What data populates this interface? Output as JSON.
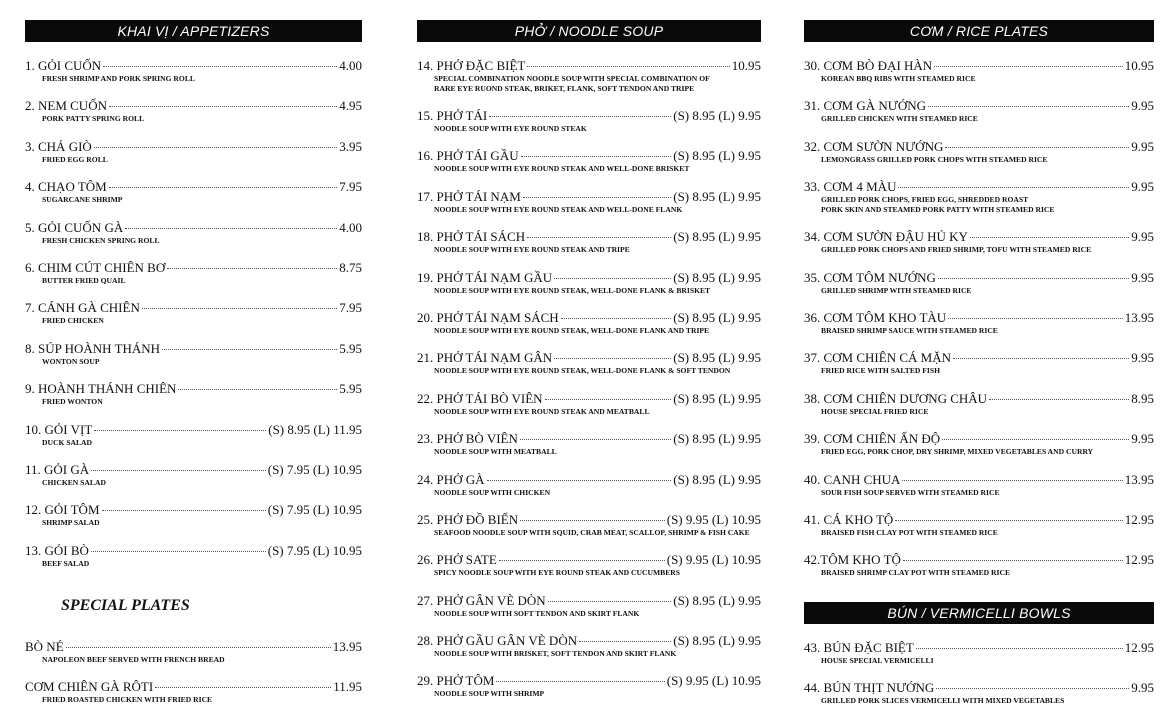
{
  "columns": [
    {
      "header": "KHAI VỊ  /  APPETIZERS",
      "items": [
        {
          "name": "1. GỎI CUỐN",
          "price": "4.00",
          "desc": "FRESH SHRIMP AND PORK SPRING ROLL"
        },
        {
          "name": "2. NEM CUỐN",
          "price": "4.95",
          "desc": "PORK PATTY SPRING ROLL"
        },
        {
          "name": "3. CHẢ GIÒ",
          "price": "3.95",
          "desc": "FRIED EGG ROLL"
        },
        {
          "name": "4. CHẠO TÔM",
          "price": "7.95",
          "desc": "SUGARCANE SHRIMP"
        },
        {
          "name": "5. GỎI CUỐN GÀ",
          "price": "4.00",
          "desc": "FRESH CHICKEN SPRING ROLL"
        },
        {
          "name": "6. CHIM CÚT CHIÊN BƠ",
          "price": "8.75",
          "desc": "BUTTER FRIED QUAIL"
        },
        {
          "name": "7. CÁNH GÀ CHIÊN",
          "price": "7.95",
          "desc": "FRIED CHICKEN"
        },
        {
          "name": "8. SÚP HOÀNH THÁNH",
          "price": "5.95",
          "desc": "WONTON SOUP"
        },
        {
          "name": "9. HOÀNH THÁNH CHIÊN",
          "price": "5.95",
          "desc": "FRIED WONTON"
        },
        {
          "name": "10. GỎI VỊT",
          "price": "(S) 8.95 (L) 11.95",
          "desc": "DUCK SALAD"
        },
        {
          "name": "11. GỎI GÀ",
          "price": "(S) 7.95 (L) 10.95",
          "desc": "CHICKEN SALAD"
        },
        {
          "name": "12. GỎI TÔM",
          "price": "(S) 7.95 (L) 10.95",
          "desc": "SHRIMP SALAD"
        },
        {
          "name": "13. GỎI BÒ",
          "price": "(S) 7.95 (L) 10.95",
          "desc": "BEEF SALAD"
        }
      ],
      "subsection": {
        "title": "SPECIAL PLATES",
        "items": [
          {
            "name": "BÒ NÉ",
            "price": "13.95",
            "desc": "NAPOLEON BEEF SERVED WITH FRENCH BREAD"
          },
          {
            "name": "CƠM CHIÊN GÀ RÔTI",
            "price": "11.95",
            "desc": "FRIED ROASTED CHICKEN WITH FRIED RICE"
          }
        ]
      }
    },
    {
      "header": "PHỞ  /  NOODLE SOUP",
      "items": [
        {
          "name": "14. PHỞ ĐẶC BIỆT",
          "price": "10.95",
          "desc": "SPECIAL COMBINATION NOODLE SOUP WITH SPECIAL COMBINATION OF\nRARE EYE RUOND STEAK, BRIKET, FLANK, SOFT TENDON AND TRIPE"
        },
        {
          "name": "15. PHỞ TÁI",
          "price": "(S) 8.95 (L) 9.95",
          "desc": "NOODLE SOUP WITH EYE ROUND STEAK"
        },
        {
          "name": "16. PHỞ TÁI GẦU",
          "price": "(S) 8.95 (L) 9.95",
          "desc": "NOODLE SOUP WITH EYE ROUND STEAK AND WELL-DONE BRISKET"
        },
        {
          "name": "17. PHỞ TÁI NẠM",
          "price": "(S) 8.95 (L) 9.95",
          "desc": "NOODLE SOUP WITH EYE ROUND STEAK AND WELL-DONE FLANK"
        },
        {
          "name": "18. PHỞ TÁI SÁCH",
          "price": "(S) 8.95 (L) 9.95",
          "desc": "NOODLE SOUP WITH EYE ROUND STEAK AND TRIPE"
        },
        {
          "name": "19. PHỞ TÁI NẠM GẦU",
          "price": "(S) 8.95 (L) 9.95",
          "desc": "NOODLE SOUP WITH EYE ROUND STEAK, WELL-DONE FLANK & BRISKET"
        },
        {
          "name": "20. PHỞ TÁI NẠM SÁCH",
          "price": "(S) 8.95 (L) 9.95",
          "desc": "NOODLE SOUP WITH EYE ROUND STEAK, WELL-DONE FLANK AND TRIPE"
        },
        {
          "name": "21. PHỞ TÁI NẠM GÂN",
          "price": "(S) 8.95 (L) 9.95",
          "desc": "NOODLE SOUP WITH EYE ROUND STEAK, WELL-DONE FLANK & SOFT TENDON"
        },
        {
          "name": "22. PHỞ TÁI BÒ VIÊN",
          "price": "(S) 8.95 (L) 9.95",
          "desc": "NOODLE SOUP WITH EYE ROUND STEAK AND MEATBALL"
        },
        {
          "name": "23. PHỞ BÒ VIÊN",
          "price": "(S) 8.95 (L) 9.95",
          "desc": "NOODLE SOUP WITH MEATBALL"
        },
        {
          "name": "24. PHỞ GÀ",
          "price": "(S) 8.95 (L) 9.95",
          "desc": "NOODLE SOUP WITH CHICKEN"
        },
        {
          "name": "25. PHỞ ĐỒ BIỂN",
          "price": "(S) 9.95 (L) 10.95",
          "desc": "SEAFOOD NOODLE SOUP WITH SQUID, CRAB MEAT, SCALLOP, SHRIMP & FISH CAKE"
        },
        {
          "name": "26. PHỞ SATE",
          "price": "(S) 9.95 (L) 10.95",
          "desc": "SPICY NOODLE SOUP WITH EYE ROUND STEAK AND CUCUMBERS"
        },
        {
          "name": "27. PHỞ GÂN VÈ DÒN",
          "price": "(S) 8.95 (L) 9.95",
          "desc": "NOODLE SOUP WITH SOFT TENDON AND SKIRT FLANK"
        },
        {
          "name": "28. PHỞ GẦU GÂN VÈ DÒN",
          "price": "(S) 8.95 (L) 9.95",
          "desc": "NOODLE SOUP WITH BRISKET, SOFT TENDON AND SKIRT FLANK"
        },
        {
          "name": "29. PHỞ TÔM",
          "price": "(S) 9.95 (L) 10.95",
          "desc": "NOODLE SOUP WITH SHRIMP"
        }
      ]
    },
    {
      "header": "CƠM  /  RICE PLATES",
      "items": [
        {
          "name": "30. CƠM BÒ ĐẠI HÀN",
          "price": "10.95",
          "desc": "KOREAN BBQ RIBS WITH STEAMED RICE"
        },
        {
          "name": "31. CƠM GÀ NƯỚNG",
          "price": "9.95",
          "desc": "GRILLED CHICKEN WITH STEAMED RICE"
        },
        {
          "name": "32. CƠM SƯỜN NƯỚNG",
          "price": "9.95",
          "desc": "LEMONGRASS GRILLED PORK CHOPS WITH STEAMED RICE"
        },
        {
          "name": "33. CƠM 4 MÀU",
          "price": "9.95",
          "desc": "GRILLED PORK CHOPS, FRIED EGG, SHREDDED ROAST\nPORK SKIN AND STEAMED PORK PATTY WITH STEAMED RICE"
        },
        {
          "name": "34. CƠM SƯỜN ĐẬU HỦ KY",
          "price": "9.95",
          "desc": "GRILLED PORK CHOPS AND FRIED SHRIMP, TOFU WITH STEAMED RICE"
        },
        {
          "name": "35. CƠM TÔM NƯỚNG",
          "price": "9.95",
          "desc": "GRILLED SHRIMP WITH STEAMED RICE"
        },
        {
          "name": "36. CƠM TÔM KHO TÀU",
          "price": "13.95",
          "desc": "BRAISED SHRIMP SAUCE WITH STEAMED RICE"
        },
        {
          "name": "37. CƠM CHIÊN CÁ MẶN",
          "price": "9.95",
          "desc": "FRIED RICE WITH SALTED FISH"
        },
        {
          "name": "38. CƠM CHIÊN DƯƠNG CHÂU",
          "price": "8.95",
          "desc": "HOUSE SPECIAL FRIED RICE"
        },
        {
          "name": "39. CƠM CHIÊN ẤN ĐỘ",
          "price": "9.95",
          "desc": "FRIED EGG, PORK CHOP, DRY SHRIMP, MIXED VEGETABLES AND CURRY"
        },
        {
          "name": "40. CANH CHUA",
          "price": "13.95",
          "desc": "SOUR FISH SOUP SERVED WITH STEAMED RICE"
        },
        {
          "name": "41. CÁ KHO TỘ",
          "price": "12.95",
          "desc": "BRAISED FISH CLAY POT WITH STEAMED RICE"
        },
        {
          "name": "42.TÔM KHO TỘ",
          "price": "12.95",
          "desc": "BRAISED SHRIMP CLAY POT WITH STEAMED RICE"
        }
      ],
      "subsection": {
        "title": "BÚN  /  VERMICELLI BOWLS",
        "items": [
          {
            "name": "43. BÚN ĐẶC BIỆT",
            "price": "12.95",
            "desc": "HOUSE SPECIAL VERMICELLI"
          },
          {
            "name": "44. BÚN THỊT NƯỚNG",
            "price": "9.95",
            "desc": "GRILLED PORK SLICES VERMICELLI WITH MIXED VEGETABLES"
          }
        ]
      }
    }
  ],
  "colors": {
    "header_bg": "#0a0a0a",
    "header_text": "#ffffff",
    "text": "#111111"
  }
}
